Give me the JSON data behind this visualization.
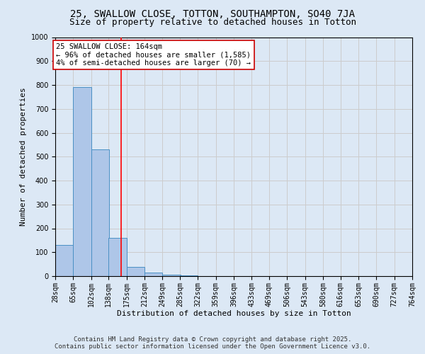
{
  "title1": "25, SWALLOW CLOSE, TOTTON, SOUTHAMPTON, SO40 7JA",
  "title2": "Size of property relative to detached houses in Totton",
  "xlabel": "Distribution of detached houses by size in Totton",
  "ylabel": "Number of detached properties",
  "bin_edges": [
    28,
    65,
    102,
    138,
    175,
    212,
    249,
    285,
    322,
    359,
    396,
    433,
    469,
    506,
    543,
    580,
    616,
    653,
    690,
    727,
    764
  ],
  "bar_heights": [
    130,
    790,
    530,
    160,
    40,
    15,
    5,
    2,
    1,
    0,
    1,
    0,
    0,
    0,
    0,
    0,
    0,
    0,
    0,
    0
  ],
  "bar_color": "#aec6e8",
  "bar_edge_color": "#4a90c4",
  "red_line_x": 164,
  "annotation_text": "25 SWALLOW CLOSE: 164sqm\n← 96% of detached houses are smaller (1,585)\n4% of semi-detached houses are larger (70) →",
  "annotation_box_color": "#ffffff",
  "annotation_border_color": "#cc0000",
  "ylim": [
    0,
    1000
  ],
  "yticks": [
    0,
    100,
    200,
    300,
    400,
    500,
    600,
    700,
    800,
    900,
    1000
  ],
  "grid_color": "#cccccc",
  "background_color": "#dce8f5",
  "footer1": "Contains HM Land Registry data © Crown copyright and database right 2025.",
  "footer2": "Contains public sector information licensed under the Open Government Licence v3.0.",
  "title1_fontsize": 10,
  "title2_fontsize": 9,
  "xlabel_fontsize": 8,
  "ylabel_fontsize": 8,
  "tick_fontsize": 7,
  "annotation_fontsize": 7.5,
  "footer_fontsize": 6.5
}
